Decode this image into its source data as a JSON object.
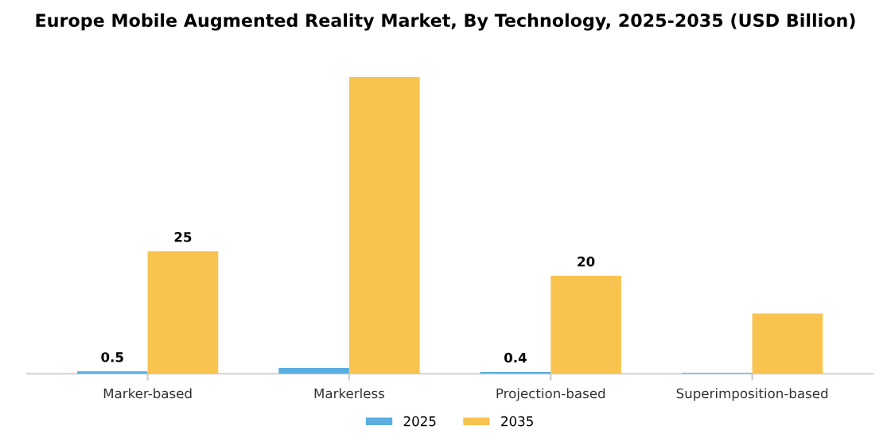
{
  "chart_data": {
    "type": "bar",
    "title": "Europe Mobile Augmented Reality Market, By Technology, 2025-2035 (USD Billion)",
    "categories": [
      "Marker-based",
      "Markerless",
      "Projection-based",
      "Superimposition-based"
    ],
    "series": [
      {
        "name": "2025",
        "color": "#5aaee0",
        "values": [
          0.5,
          1.2,
          0.4,
          0.2
        ],
        "value_labels": [
          "0.5",
          null,
          "0.4",
          null
        ]
      },
      {
        "name": "2035",
        "color": "#f8c34f",
        "values": [
          25,
          60.5,
          20,
          12.3
        ],
        "value_labels": [
          "25",
          null,
          "20",
          null
        ]
      }
    ],
    "legend": "bottom",
    "tick_labels": "x"
  }
}
